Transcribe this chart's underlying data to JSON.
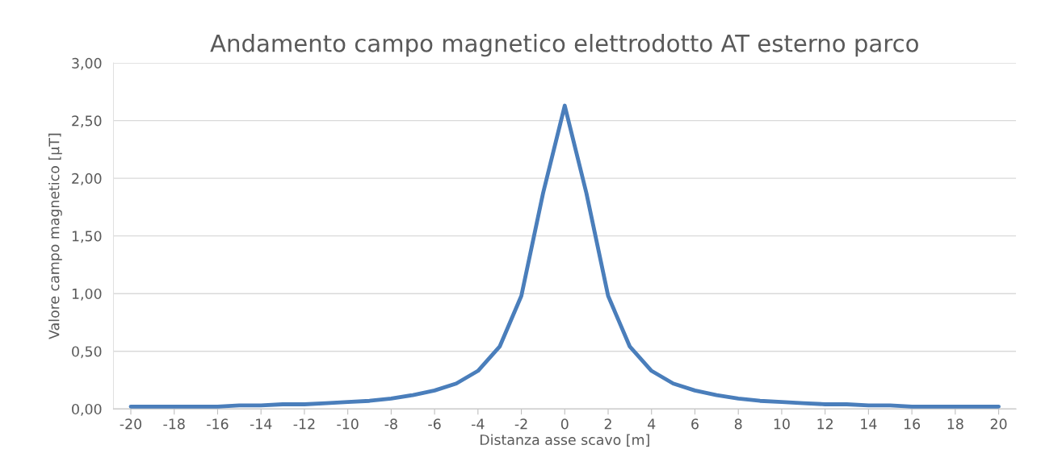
{
  "chart_data": {
    "type": "line",
    "title": "Andamento campo magnetico elettrodotto AT esterno parco",
    "xlabel": "Distanza asse scavo [m]",
    "ylabel": "Valore campo magnetico [µT]",
    "x": [
      -20,
      -19,
      -18,
      -17,
      -16,
      -15,
      -14,
      -13,
      -12,
      -11,
      -10,
      -9,
      -8,
      -7,
      -6,
      -5,
      -4,
      -3,
      -2,
      -1,
      0,
      1,
      2,
      3,
      4,
      5,
      6,
      7,
      8,
      9,
      10,
      11,
      12,
      13,
      14,
      15,
      16,
      17,
      18,
      19,
      20
    ],
    "series": [
      {
        "color": "#4a7ebb",
        "values": [
          0.02,
          0.02,
          0.02,
          0.02,
          0.02,
          0.03,
          0.03,
          0.04,
          0.04,
          0.05,
          0.06,
          0.07,
          0.09,
          0.12,
          0.16,
          0.22,
          0.33,
          0.54,
          0.98,
          1.87,
          2.63,
          1.87,
          0.98,
          0.54,
          0.33,
          0.22,
          0.16,
          0.12,
          0.09,
          0.07,
          0.06,
          0.05,
          0.04,
          0.04,
          0.03,
          0.03,
          0.02,
          0.02,
          0.02,
          0.02,
          0.02
        ]
      }
    ],
    "xlim": [
      -20.8,
      20.8
    ],
    "xticks": [
      -20,
      -18,
      -16,
      -14,
      -12,
      -10,
      -8,
      -6,
      -4,
      -2,
      0,
      2,
      4,
      6,
      8,
      10,
      12,
      14,
      16,
      18,
      20
    ],
    "ylim": [
      0,
      3
    ],
    "yticks": [
      {
        "value": 0,
        "label": "0,00"
      },
      {
        "value": 0.5,
        "label": "0,50"
      },
      {
        "value": 1,
        "label": "1,00"
      },
      {
        "value": 1.5,
        "label": "1,50"
      },
      {
        "value": 2,
        "label": "2,00"
      },
      {
        "value": 2.5,
        "label": "2,50"
      },
      {
        "value": 3,
        "label": "3,00"
      }
    ],
    "grid": "y",
    "legend": false,
    "marker": "none",
    "line_style": "solid"
  }
}
